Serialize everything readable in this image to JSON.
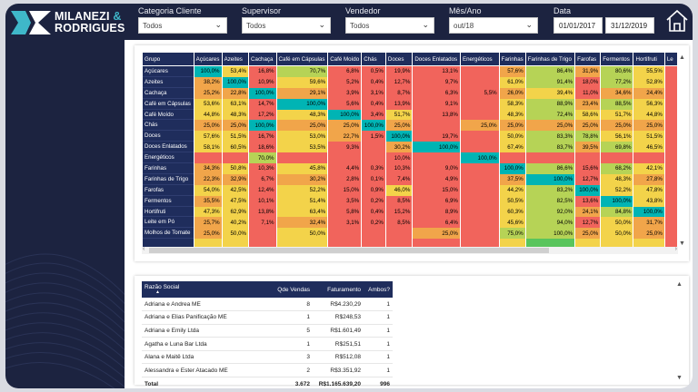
{
  "brand": {
    "line1": "MILANEZI",
    "amp": "&",
    "line2": "RODRIGUES"
  },
  "colors": {
    "navy": "#1c2340",
    "header": "#1f2d5c",
    "teal": "#00b4b4",
    "green": "#59c55c",
    "lime": "#b6d356",
    "yellow": "#f3d34a",
    "orange": "#f1a54a",
    "red": "#f1645c",
    "light_green": "#a4d76b"
  },
  "filters": {
    "categoria": {
      "label": "Categoria Cliente",
      "value": "Todos"
    },
    "supervisor": {
      "label": "Supervisor",
      "value": "Todos"
    },
    "vendedor": {
      "label": "Vendedor",
      "value": "Todos"
    },
    "mes_ano": {
      "label": "Mês/Ano",
      "value": "out/18"
    },
    "data": {
      "label": "Data",
      "start": "01/01/2017",
      "end": "31/12/2019"
    }
  },
  "icons": {
    "home": "home-icon",
    "dropdown": "chevron-down-icon"
  },
  "matrix": {
    "row_header": "Grupo",
    "columns": [
      "Açúcares",
      "Azeites",
      "Cachaça",
      "Café em Cápsulas",
      "Café Moído",
      "Chás",
      "Doces",
      "Doces Enlatados",
      "Energéticos",
      "Farinhas",
      "Farinhas de Trigo",
      "Farofas",
      "Fermentos",
      "Hortifruti",
      "Le"
    ],
    "rows": [
      {
        "label": "Açúcares",
        "cells": [
          [
            "100,0%",
            "t"
          ],
          [
            "53,4%",
            "y"
          ],
          [
            "16,8%",
            "r"
          ],
          [
            "70,7%",
            "l"
          ],
          [
            "6,8%",
            "r"
          ],
          [
            "0,5%",
            "r"
          ],
          [
            "19,9%",
            "r"
          ],
          [
            "13,1%",
            "r"
          ],
          [
            "",
            "r"
          ],
          [
            "57,6%",
            "o"
          ],
          [
            "86,4%",
            "l"
          ],
          [
            "31,9%",
            "o"
          ],
          [
            "80,6%",
            "l"
          ],
          [
            "55,5%",
            "y"
          ],
          [
            "",
            "r"
          ]
        ]
      },
      {
        "label": "Azeites",
        "cells": [
          [
            "38,2%",
            "o"
          ],
          [
            "100,0%",
            "t"
          ],
          [
            "10,9%",
            "r"
          ],
          [
            "59,6%",
            "y"
          ],
          [
            "5,2%",
            "r"
          ],
          [
            "0,4%",
            "r"
          ],
          [
            "12,7%",
            "r"
          ],
          [
            "9,7%",
            "r"
          ],
          [
            "",
            "r"
          ],
          [
            "61,0%",
            "y"
          ],
          [
            "91,4%",
            "l"
          ],
          [
            "18,0%",
            "r"
          ],
          [
            "77,2%",
            "l"
          ],
          [
            "52,8%",
            "y"
          ],
          [
            "",
            "r"
          ]
        ]
      },
      {
        "label": "Cachaça",
        "cells": [
          [
            "25,2%",
            "o"
          ],
          [
            "22,8%",
            "o"
          ],
          [
            "100,0%",
            "t"
          ],
          [
            "29,1%",
            "o"
          ],
          [
            "3,9%",
            "r"
          ],
          [
            "3,1%",
            "r"
          ],
          [
            "8,7%",
            "r"
          ],
          [
            "6,3%",
            "r"
          ],
          [
            "5,5%",
            "r"
          ],
          [
            "26,0%",
            "o"
          ],
          [
            "39,4%",
            "y"
          ],
          [
            "11,0%",
            "r"
          ],
          [
            "34,6%",
            "o"
          ],
          [
            "24,4%",
            "o"
          ],
          [
            "",
            "r"
          ]
        ]
      },
      {
        "label": "Café em Cápsulas",
        "cells": [
          [
            "53,6%",
            "y"
          ],
          [
            "63,1%",
            "y"
          ],
          [
            "14,7%",
            "r"
          ],
          [
            "100,0%",
            "t"
          ],
          [
            "5,6%",
            "r"
          ],
          [
            "0,4%",
            "r"
          ],
          [
            "13,9%",
            "r"
          ],
          [
            "9,1%",
            "r"
          ],
          [
            "",
            "r"
          ],
          [
            "58,3%",
            "y"
          ],
          [
            "88,9%",
            "l"
          ],
          [
            "23,4%",
            "o"
          ],
          [
            "88,5%",
            "l"
          ],
          [
            "56,3%",
            "y"
          ],
          [
            "",
            "r"
          ]
        ]
      },
      {
        "label": "Café Moído",
        "cells": [
          [
            "44,8%",
            "y"
          ],
          [
            "48,3%",
            "y"
          ],
          [
            "17,2%",
            "r"
          ],
          [
            "48,3%",
            "y"
          ],
          [
            "100,0%",
            "t"
          ],
          [
            "3,4%",
            "r"
          ],
          [
            "51,7%",
            "y"
          ],
          [
            "13,8%",
            "r"
          ],
          [
            "",
            "r"
          ],
          [
            "48,3%",
            "y"
          ],
          [
            "72,4%",
            "l"
          ],
          [
            "58,6%",
            "y"
          ],
          [
            "51,7%",
            "y"
          ],
          [
            "44,8%",
            "y"
          ],
          [
            "",
            "r"
          ]
        ]
      },
      {
        "label": "Chás",
        "cells": [
          [
            "25,0%",
            "o"
          ],
          [
            "25,0%",
            "o"
          ],
          [
            "100,0%",
            "t"
          ],
          [
            "25,0%",
            "o"
          ],
          [
            "25,0%",
            "o"
          ],
          [
            "100,0%",
            "t"
          ],
          [
            "25,0%",
            "o"
          ],
          [
            "",
            "r"
          ],
          [
            "25,0%",
            "o"
          ],
          [
            "25,0%",
            "o"
          ],
          [
            "25,0%",
            "o"
          ],
          [
            "25,0%",
            "o"
          ],
          [
            "25,0%",
            "o"
          ],
          [
            "25,0%",
            "o"
          ],
          [
            "",
            "r"
          ]
        ]
      },
      {
        "label": "Doces",
        "cells": [
          [
            "57,6%",
            "y"
          ],
          [
            "51,5%",
            "y"
          ],
          [
            "16,7%",
            "r"
          ],
          [
            "53,0%",
            "y"
          ],
          [
            "22,7%",
            "o"
          ],
          [
            "1,5%",
            "r"
          ],
          [
            "100,0%",
            "t"
          ],
          [
            "19,7%",
            "r"
          ],
          [
            "",
            "r"
          ],
          [
            "50,0%",
            "y"
          ],
          [
            "83,3%",
            "l"
          ],
          [
            "78,8%",
            "l"
          ],
          [
            "56,1%",
            "y"
          ],
          [
            "51,5%",
            "y"
          ],
          [
            "",
            "r"
          ]
        ]
      },
      {
        "label": "Doces Enlatados",
        "cells": [
          [
            "58,1%",
            "y"
          ],
          [
            "60,5%",
            "y"
          ],
          [
            "18,6%",
            "r"
          ],
          [
            "53,5%",
            "y"
          ],
          [
            "9,3%",
            "r"
          ],
          [
            "",
            "r"
          ],
          [
            "30,2%",
            "o"
          ],
          [
            "100,0%",
            "t"
          ],
          [
            "",
            "r"
          ],
          [
            "67,4%",
            "y"
          ],
          [
            "83,7%",
            "l"
          ],
          [
            "39,5%",
            "o"
          ],
          [
            "69,8%",
            "l"
          ],
          [
            "46,5%",
            "y"
          ],
          [
            "",
            "r"
          ]
        ]
      },
      {
        "label": "Energéticos",
        "cells": [
          [
            "",
            "r"
          ],
          [
            "",
            "r"
          ],
          [
            "70,0%",
            "l"
          ],
          [
            "",
            "r"
          ],
          [
            "",
            "r"
          ],
          [
            "",
            "r"
          ],
          [
            "10,0%",
            "r"
          ],
          [
            "",
            "r"
          ],
          [
            "100,0%",
            "t"
          ],
          [
            "",
            "r"
          ],
          [
            "",
            "r"
          ],
          [
            "",
            "r"
          ],
          [
            "",
            "r"
          ],
          [
            "",
            "r"
          ],
          [
            "",
            "r"
          ]
        ]
      },
      {
        "label": "Farinhas",
        "cells": [
          [
            "34,3%",
            "o"
          ],
          [
            "50,8%",
            "y"
          ],
          [
            "10,3%",
            "r"
          ],
          [
            "45,8%",
            "y"
          ],
          [
            "4,4%",
            "r"
          ],
          [
            "0,3%",
            "r"
          ],
          [
            "10,3%",
            "r"
          ],
          [
            "9,0%",
            "r"
          ],
          [
            "",
            "r"
          ],
          [
            "100,0%",
            "t"
          ],
          [
            "86,6%",
            "l"
          ],
          [
            "15,6%",
            "r"
          ],
          [
            "68,2%",
            "l"
          ],
          [
            "42,1%",
            "y"
          ],
          [
            "",
            "r"
          ]
        ]
      },
      {
        "label": "Farinhas de Trigo",
        "cells": [
          [
            "22,3%",
            "o"
          ],
          [
            "32,9%",
            "o"
          ],
          [
            "6,7%",
            "r"
          ],
          [
            "30,2%",
            "o"
          ],
          [
            "2,8%",
            "r"
          ],
          [
            "0,1%",
            "r"
          ],
          [
            "7,4%",
            "r"
          ],
          [
            "4,9%",
            "r"
          ],
          [
            "",
            "r"
          ],
          [
            "37,5%",
            "o"
          ],
          [
            "100,0%",
            "t"
          ],
          [
            "12,7%",
            "r"
          ],
          [
            "48,3%",
            "y"
          ],
          [
            "27,8%",
            "o"
          ],
          [
            "",
            "r"
          ]
        ]
      },
      {
        "label": "Farofas",
        "cells": [
          [
            "54,0%",
            "y"
          ],
          [
            "42,5%",
            "y"
          ],
          [
            "12,4%",
            "r"
          ],
          [
            "52,2%",
            "y"
          ],
          [
            "15,0%",
            "r"
          ],
          [
            "0,9%",
            "r"
          ],
          [
            "46,0%",
            "y"
          ],
          [
            "15,0%",
            "r"
          ],
          [
            "",
            "r"
          ],
          [
            "44,2%",
            "y"
          ],
          [
            "83,2%",
            "l"
          ],
          [
            "100,0%",
            "t"
          ],
          [
            "52,2%",
            "y"
          ],
          [
            "47,8%",
            "y"
          ],
          [
            "",
            "r"
          ]
        ]
      },
      {
        "label": "Fermentos",
        "cells": [
          [
            "35,5%",
            "o"
          ],
          [
            "47,5%",
            "y"
          ],
          [
            "10,1%",
            "r"
          ],
          [
            "51,4%",
            "y"
          ],
          [
            "3,5%",
            "r"
          ],
          [
            "0,2%",
            "r"
          ],
          [
            "8,5%",
            "r"
          ],
          [
            "6,9%",
            "r"
          ],
          [
            "",
            "r"
          ],
          [
            "50,5%",
            "y"
          ],
          [
            "82,5%",
            "l"
          ],
          [
            "13,6%",
            "r"
          ],
          [
            "100,0%",
            "t"
          ],
          [
            "43,8%",
            "y"
          ],
          [
            "",
            "r"
          ]
        ]
      },
      {
        "label": "Hortifruti",
        "cells": [
          [
            "47,3%",
            "y"
          ],
          [
            "62,9%",
            "y"
          ],
          [
            "13,8%",
            "r"
          ],
          [
            "63,4%",
            "y"
          ],
          [
            "5,8%",
            "r"
          ],
          [
            "0,4%",
            "r"
          ],
          [
            "15,2%",
            "r"
          ],
          [
            "8,9%",
            "r"
          ],
          [
            "",
            "r"
          ],
          [
            "60,3%",
            "y"
          ],
          [
            "92,0%",
            "l"
          ],
          [
            "24,1%",
            "o"
          ],
          [
            "84,8%",
            "l"
          ],
          [
            "100,0%",
            "t"
          ],
          [
            "",
            "r"
          ]
        ]
      },
      {
        "label": "Leite em Pó",
        "cells": [
          [
            "25,7%",
            "o"
          ],
          [
            "40,2%",
            "y"
          ],
          [
            "7,1%",
            "r"
          ],
          [
            "32,4%",
            "o"
          ],
          [
            "3,1%",
            "r"
          ],
          [
            "0,2%",
            "r"
          ],
          [
            "8,5%",
            "r"
          ],
          [
            "6,4%",
            "r"
          ],
          [
            "",
            "r"
          ],
          [
            "45,6%",
            "y"
          ],
          [
            "94,0%",
            "l"
          ],
          [
            "12,7%",
            "r"
          ],
          [
            "50,0%",
            "y"
          ],
          [
            "31,7%",
            "o"
          ],
          [
            "",
            "r"
          ]
        ]
      },
      {
        "label": "Molhos de Tomate",
        "cells": [
          [
            "25,0%",
            "o"
          ],
          [
            "50,0%",
            "y"
          ],
          [
            "",
            "r"
          ],
          [
            "50,0%",
            "y"
          ],
          [
            "",
            "r"
          ],
          [
            "",
            "r"
          ],
          [
            "",
            "r"
          ],
          [
            "25,0%",
            "o"
          ],
          [
            "",
            "r"
          ],
          [
            "75,0%",
            "l"
          ],
          [
            "100,0%",
            "l"
          ],
          [
            "25,0%",
            "o"
          ],
          [
            "50,0%",
            "y"
          ],
          [
            "25,0%",
            "o"
          ],
          [
            "",
            "r"
          ]
        ]
      },
      {
        "label": "",
        "cells": [
          [
            "",
            "y"
          ],
          [
            "",
            "y"
          ],
          [
            "",
            "r"
          ],
          [
            "",
            "y"
          ],
          [
            "",
            "r"
          ],
          [
            "",
            "r"
          ],
          [
            "",
            "r"
          ],
          [
            "",
            "r"
          ],
          [
            "",
            "r"
          ],
          [
            "",
            "y"
          ],
          [
            "",
            "g"
          ],
          [
            "",
            "y"
          ],
          [
            "",
            "y"
          ],
          [
            "",
            "y"
          ],
          [
            "",
            "r"
          ]
        ]
      }
    ]
  },
  "sales": {
    "headers": {
      "razao": "Razão Social",
      "qde": "Qde Vendas",
      "fat": "Faturamento",
      "ambos": "Ambos?"
    },
    "rows": [
      {
        "razao": "Adriana e Andrea ME",
        "qde": "8",
        "fat": "R$4.230,29",
        "ambos": "1"
      },
      {
        "razao": "Adriana e Elias Panificação ME",
        "qde": "1",
        "fat": "R$248,53",
        "ambos": "1"
      },
      {
        "razao": "Adriana e Emily Ltda",
        "qde": "5",
        "fat": "R$1.601,49",
        "ambos": "1"
      },
      {
        "razao": "Agatha e Luna Bar Ltda",
        "qde": "1",
        "fat": "R$251,51",
        "ambos": "1"
      },
      {
        "razao": "Alana e Maitê Ltda",
        "qde": "3",
        "fat": "R$512,08",
        "ambos": "1"
      },
      {
        "razao": "Alessandra e Ester Atacado ME",
        "qde": "2",
        "fat": "R$3.351,92",
        "ambos": "1"
      }
    ],
    "total": {
      "razao": "Total",
      "qde": "3.672",
      "fat": "R$1.165.639,20",
      "ambos": "996"
    }
  }
}
